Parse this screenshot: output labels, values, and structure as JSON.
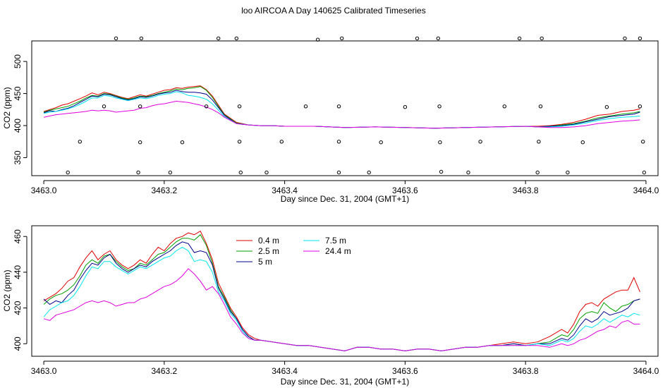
{
  "title": "loo AIRCOA A  Day 140625  Calibrated Timeseries",
  "colors": {
    "0.4 m": "#e00000",
    "2.5 m": "#00a000",
    "5 m": "#00008b",
    "7.5 m": "#00e5ee",
    "24.4 m": "#e000e0",
    "axes": "#000000"
  },
  "chart_data": [
    {
      "type": "line",
      "xlabel": "Day since Dec. 31, 2004 (GMT+1)",
      "ylabel": "CO2 (ppm)",
      "xlim": [
        2.98,
        4.02
      ],
      "xticks": [
        3.0,
        3.2,
        3.4,
        3.6,
        3.8,
        4.0
      ],
      "xtick_labels": [
        "3463.0",
        "3463.2",
        "3463.4",
        "3463.6",
        "3463.8",
        "3464.0"
      ],
      "ylim": [
        322,
        532
      ],
      "yticks": [
        350,
        400,
        450,
        500
      ],
      "ytick_labels": [
        "350",
        "400",
        "450",
        "500"
      ],
      "legend": "none",
      "x": [
        3.0,
        3.01,
        3.02,
        3.03,
        3.04,
        3.05,
        3.06,
        3.07,
        3.08,
        3.09,
        3.1,
        3.11,
        3.12,
        3.13,
        3.14,
        3.15,
        3.16,
        3.17,
        3.18,
        3.19,
        3.2,
        3.21,
        3.22,
        3.23,
        3.24,
        3.25,
        3.26,
        3.27,
        3.28,
        3.29,
        3.3,
        3.32,
        3.34,
        3.36,
        3.38,
        3.4,
        3.45,
        3.5,
        3.55,
        3.6,
        3.65,
        3.7,
        3.75,
        3.8,
        3.82,
        3.84,
        3.86,
        3.88,
        3.9,
        3.92,
        3.94,
        3.96,
        3.98,
        3.99
      ],
      "series": [
        {
          "name": "0.4 m",
          "values": [
            422,
            425,
            428,
            432,
            434,
            438,
            442,
            446,
            451,
            448,
            452,
            450,
            447,
            444,
            442,
            445,
            448,
            446,
            449,
            452,
            455,
            456,
            459,
            458,
            460,
            461,
            462,
            456,
            446,
            432,
            418,
            405,
            401,
            400,
            400,
            399,
            399,
            397,
            398,
            397,
            396,
            397,
            398,
            399,
            399,
            400,
            402,
            405,
            410,
            416,
            418,
            422,
            424,
            426
          ]
        },
        {
          "name": "2.5 m",
          "values": [
            421,
            424,
            426,
            428,
            430,
            434,
            438,
            443,
            447,
            446,
            450,
            449,
            446,
            443,
            441,
            443,
            446,
            445,
            447,
            450,
            452,
            454,
            457,
            456,
            458,
            459,
            461,
            455,
            444,
            430,
            417,
            404,
            401,
            400,
            400,
            399,
            399,
            397,
            398,
            397,
            396,
            397,
            398,
            399,
            398,
            399,
            401,
            403,
            407,
            412,
            415,
            418,
            420,
            422
          ]
        },
        {
          "name": "5 m",
          "values": [
            420,
            423,
            422,
            425,
            427,
            431,
            436,
            441,
            446,
            445,
            449,
            448,
            445,
            442,
            440,
            442,
            445,
            444,
            446,
            449,
            451,
            452,
            455,
            453,
            452,
            452,
            451,
            449,
            440,
            428,
            416,
            403,
            401,
            400,
            400,
            399,
            399,
            397,
            398,
            397,
            396,
            397,
            398,
            399,
            398,
            399,
            400,
            402,
            406,
            410,
            414,
            416,
            418,
            421
          ]
        },
        {
          "name": "7.5 m",
          "values": [
            419,
            421,
            422,
            424,
            426,
            429,
            433,
            438,
            443,
            443,
            447,
            446,
            443,
            441,
            439,
            441,
            443,
            442,
            444,
            447,
            449,
            450,
            453,
            451,
            447,
            446,
            444,
            441,
            434,
            424,
            414,
            403,
            401,
            400,
            400,
            399,
            399,
            397,
            398,
            397,
            396,
            397,
            398,
            399,
            398,
            398,
            399,
            401,
            404,
            408,
            411,
            413,
            414,
            415
          ]
        },
        {
          "name": "24.4 m",
          "values": [
            413,
            415,
            417,
            418,
            419,
            420,
            421,
            422,
            424,
            423,
            424,
            423,
            421,
            422,
            423,
            424,
            427,
            428,
            431,
            433,
            434,
            436,
            438,
            437,
            436,
            434,
            432,
            429,
            425,
            420,
            413,
            403,
            401,
            400,
            400,
            399,
            399,
            397,
            398,
            397,
            396,
            397,
            398,
            399,
            398,
            397,
            397,
            398,
            400,
            403,
            405,
            407,
            408,
            409
          ]
        }
      ],
      "scatter_x": [
        3.04,
        3.06,
        3.1,
        3.12,
        3.157,
        3.16,
        3.16,
        3.162,
        3.21,
        3.23,
        3.27,
        3.29,
        3.32,
        3.325,
        3.325,
        3.327,
        3.37,
        3.395,
        3.435,
        3.455,
        3.49,
        3.49,
        3.49,
        3.495,
        3.54,
        3.56,
        3.6,
        3.62,
        3.655,
        3.657,
        3.658,
        3.66,
        3.705,
        3.725,
        3.765,
        3.79,
        3.82,
        3.822,
        3.825,
        3.827,
        3.87,
        3.895,
        3.935,
        3.965,
        3.99,
        3.99,
        3.995,
        3.997
      ],
      "scatter_y": [
        327,
        375,
        430,
        536,
        327,
        374,
        430,
        536,
        327,
        374,
        430,
        536,
        536,
        430,
        375,
        327,
        327,
        375,
        430,
        534,
        327,
        375,
        430,
        536,
        327,
        374,
        429,
        536,
        536,
        430,
        374,
        328,
        327,
        375,
        430,
        536,
        327,
        375,
        430,
        536,
        327,
        374,
        429,
        536,
        536,
        430,
        375,
        327
      ]
    },
    {
      "type": "line",
      "xlabel": "Day since Dec. 31, 2004 (GMT+1)",
      "ylabel": "CO2 (ppm)",
      "xlim": [
        2.98,
        4.02
      ],
      "xticks": [
        3.0,
        3.2,
        3.4,
        3.6,
        3.8,
        4.0
      ],
      "xtick_labels": [
        "3463.0",
        "3463.2",
        "3463.4",
        "3463.6",
        "3463.8",
        "3464.0"
      ],
      "ylim": [
        393,
        466
      ],
      "yticks": [
        400,
        420,
        440,
        460
      ],
      "ytick_labels": [
        "400",
        "420",
        "440",
        "460"
      ],
      "legend": "top-left, two columns",
      "x": [
        3.0,
        3.01,
        3.02,
        3.03,
        3.04,
        3.05,
        3.06,
        3.07,
        3.08,
        3.09,
        3.1,
        3.11,
        3.12,
        3.13,
        3.14,
        3.15,
        3.16,
        3.17,
        3.18,
        3.19,
        3.2,
        3.21,
        3.22,
        3.23,
        3.24,
        3.25,
        3.26,
        3.27,
        3.28,
        3.29,
        3.3,
        3.31,
        3.32,
        3.33,
        3.34,
        3.35,
        3.36,
        3.38,
        3.4,
        3.42,
        3.44,
        3.46,
        3.48,
        3.5,
        3.52,
        3.54,
        3.56,
        3.58,
        3.6,
        3.62,
        3.64,
        3.66,
        3.68,
        3.7,
        3.72,
        3.74,
        3.76,
        3.78,
        3.8,
        3.82,
        3.84,
        3.86,
        3.87,
        3.88,
        3.89,
        3.9,
        3.91,
        3.92,
        3.93,
        3.94,
        3.95,
        3.96,
        3.97,
        3.98,
        3.99
      ],
      "series": [
        {
          "name": "0.4 m",
          "values": [
            424,
            426,
            428,
            431,
            435,
            437,
            443,
            448,
            452,
            447,
            450,
            452,
            447,
            444,
            442,
            444,
            447,
            445,
            450,
            454,
            452,
            456,
            459,
            460,
            462,
            461,
            463,
            456,
            447,
            434,
            427,
            420,
            415,
            409,
            405,
            403,
            402,
            401,
            400,
            399,
            399,
            398,
            397,
            396,
            398,
            398,
            397,
            397,
            396,
            397,
            397,
            396,
            397,
            398,
            398,
            399,
            400,
            401,
            400,
            401,
            404,
            408,
            406,
            411,
            418,
            422,
            423,
            421,
            425,
            427,
            429,
            430,
            430,
            437,
            429
          ]
        },
        {
          "name": "2.5 m",
          "values": [
            422,
            425,
            427,
            428,
            430,
            433,
            438,
            444,
            447,
            445,
            449,
            450,
            446,
            443,
            441,
            442,
            445,
            444,
            447,
            450,
            451,
            454,
            457,
            459,
            459,
            458,
            461,
            455,
            445,
            432,
            426,
            419,
            414,
            408,
            404,
            402,
            402,
            401,
            400,
            399,
            399,
            398,
            397,
            396,
            398,
            398,
            397,
            397,
            396,
            397,
            397,
            396,
            397,
            398,
            398,
            399,
            399,
            400,
            399,
            400,
            401,
            405,
            404,
            408,
            414,
            417,
            418,
            417,
            423,
            420,
            418,
            421,
            422,
            424,
            425
          ]
        },
        {
          "name": "5 m",
          "values": [
            425,
            422,
            424,
            423,
            427,
            430,
            436,
            441,
            445,
            444,
            448,
            450,
            445,
            442,
            440,
            442,
            444,
            443,
            446,
            448,
            450,
            452,
            455,
            457,
            456,
            451,
            452,
            451,
            444,
            431,
            425,
            418,
            414,
            408,
            404,
            402,
            402,
            401,
            400,
            399,
            399,
            398,
            397,
            396,
            398,
            398,
            397,
            397,
            396,
            397,
            397,
            396,
            397,
            398,
            398,
            399,
            399,
            400,
            399,
            400,
            400,
            403,
            402,
            405,
            410,
            414,
            412,
            414,
            418,
            416,
            417,
            418,
            420,
            424,
            425
          ]
        },
        {
          "name": "7.5 m",
          "values": [
            415,
            419,
            421,
            423,
            424,
            427,
            432,
            438,
            443,
            442,
            446,
            446,
            443,
            441,
            439,
            441,
            443,
            442,
            444,
            446,
            448,
            449,
            452,
            454,
            452,
            446,
            447,
            446,
            440,
            429,
            424,
            417,
            413,
            407,
            403,
            402,
            402,
            401,
            400,
            399,
            399,
            398,
            397,
            396,
            398,
            398,
            397,
            397,
            396,
            397,
            397,
            396,
            397,
            398,
            398,
            399,
            399,
            399,
            399,
            400,
            399,
            402,
            401,
            403,
            407,
            410,
            409,
            411,
            414,
            412,
            414,
            416,
            415,
            417,
            416
          ]
        },
        {
          "name": "24.4 m",
          "values": [
            414,
            413,
            416,
            417,
            418,
            419,
            421,
            423,
            424,
            423,
            424,
            423,
            421,
            422,
            423,
            423,
            425,
            426,
            428,
            430,
            432,
            433,
            435,
            438,
            442,
            439,
            435,
            430,
            432,
            428,
            422,
            415,
            411,
            406,
            403,
            402,
            402,
            401,
            400,
            399,
            399,
            398,
            397,
            396,
            398,
            398,
            397,
            397,
            396,
            397,
            397,
            396,
            397,
            398,
            398,
            399,
            399,
            399,
            399,
            399,
            398,
            400,
            399,
            400,
            402,
            403,
            405,
            407,
            408,
            410,
            409,
            412,
            413,
            411,
            411
          ]
        }
      ]
    }
  ]
}
